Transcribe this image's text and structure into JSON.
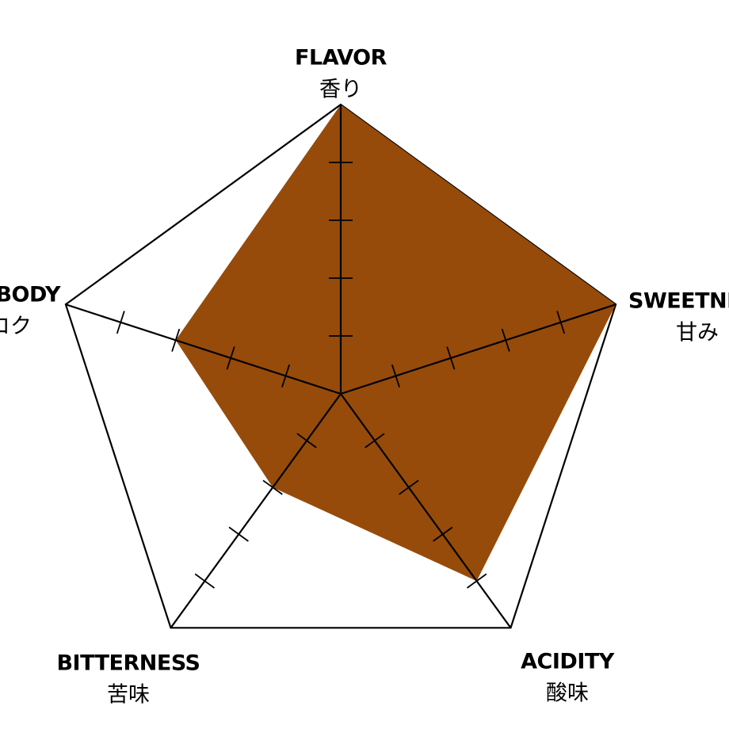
{
  "chart_data": {
    "type": "radar",
    "scale_max": 5,
    "axes": [
      {
        "label_en": "FLAVOR",
        "label_jp": "香り",
        "value": 5
      },
      {
        "label_en": "SWEETNESS",
        "label_jp": "甘み",
        "value": 5
      },
      {
        "label_en": "ACIDITY",
        "label_jp": "酸味",
        "value": 4
      },
      {
        "label_en": "BITTERNESS",
        "label_jp": "苦味",
        "value": 2
      },
      {
        "label_en": "BODY",
        "label_jp": "コク",
        "value": 3
      }
    ],
    "colors": {
      "fill": "#964B0A",
      "outline": "#000000"
    }
  }
}
